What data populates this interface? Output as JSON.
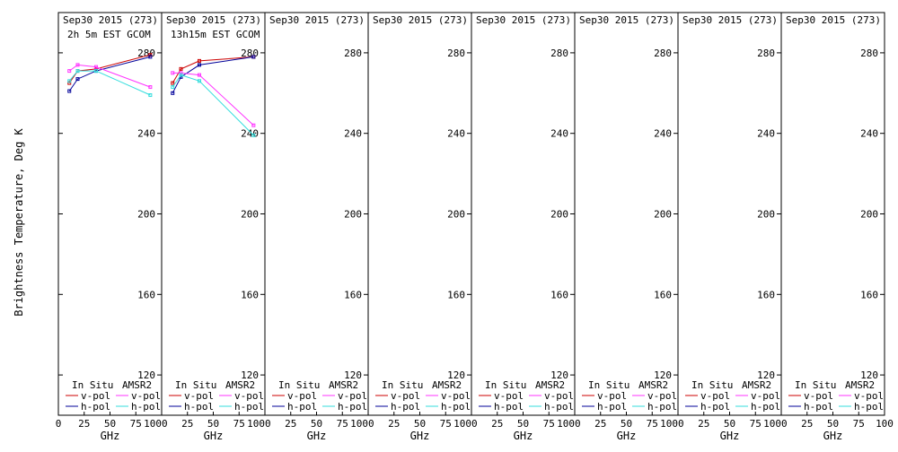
{
  "figure": {
    "ylabel": "Brightness Temperature, Deg K",
    "xlabel": "GHz"
  },
  "legend": {
    "insitu": "In Situ",
    "amsr2": "AMSR2",
    "vpol": "v-pol",
    "hpol": "h-pol"
  },
  "colors": {
    "insitu_v": "#cc0000",
    "insitu_h": "#000099",
    "amsr2_v": "#ff33ff",
    "amsr2_h": "#33dddd",
    "axis": "#000000"
  },
  "chart_data": [
    {
      "type": "line",
      "title_line1": "Sep30 2015 (273)",
      "title_line2": "2h 5m EST GCOM",
      "xlim": [
        0,
        100
      ],
      "ylim": [
        100,
        300
      ],
      "xticks": [
        0,
        25,
        50,
        75,
        100
      ],
      "yticks": [
        120,
        160,
        200,
        240,
        280
      ],
      "series": [
        {
          "key": "insitu_v",
          "x": [
            10.65,
            18.7,
            36.5,
            89
          ],
          "y": [
            265,
            271,
            272,
            279
          ]
        },
        {
          "key": "insitu_h",
          "x": [
            10.65,
            18.7,
            36.5,
            89
          ],
          "y": [
            261,
            267,
            271,
            278
          ]
        },
        {
          "key": "amsr2_v",
          "x": [
            10.65,
            18.7,
            36.5,
            89
          ],
          "y": [
            271,
            274,
            273,
            263
          ]
        },
        {
          "key": "amsr2_h",
          "x": [
            10.65,
            18.7,
            36.5,
            89
          ],
          "y": [
            266,
            271,
            271,
            259
          ]
        }
      ]
    },
    {
      "type": "line",
      "title_line1": "Sep30 2015 (273)",
      "title_line2": "13h15m EST GCOM",
      "xlim": [
        0,
        100
      ],
      "ylim": [
        100,
        300
      ],
      "xticks": [
        0,
        25,
        50,
        75,
        100
      ],
      "yticks": [
        120,
        160,
        200,
        240,
        280
      ],
      "series": [
        {
          "key": "insitu_v",
          "x": [
            10.65,
            18.7,
            36.5,
            89
          ],
          "y": [
            265,
            272,
            276,
            278
          ]
        },
        {
          "key": "insitu_h",
          "x": [
            10.65,
            18.7,
            36.5,
            89
          ],
          "y": [
            260,
            268,
            274,
            278
          ]
        },
        {
          "key": "amsr2_v",
          "x": [
            10.65,
            18.7,
            36.5,
            89
          ],
          "y": [
            270,
            270,
            269,
            244
          ]
        },
        {
          "key": "amsr2_h",
          "x": [
            10.65,
            18.7,
            36.5,
            89
          ],
          "y": [
            263,
            269,
            266,
            239
          ]
        }
      ]
    },
    {
      "type": "line",
      "title_line1": "Sep30 2015 (273)",
      "title_line2": "",
      "xlim": [
        0,
        100
      ],
      "ylim": [
        100,
        300
      ],
      "xticks": [
        0,
        25,
        50,
        75,
        100
      ],
      "yticks": [
        120,
        160,
        200,
        240,
        280
      ],
      "series": []
    },
    {
      "type": "line",
      "title_line1": "Sep30 2015 (273)",
      "title_line2": "",
      "xlim": [
        0,
        100
      ],
      "ylim": [
        100,
        300
      ],
      "xticks": [
        0,
        25,
        50,
        75,
        100
      ],
      "yticks": [
        120,
        160,
        200,
        240,
        280
      ],
      "series": []
    },
    {
      "type": "line",
      "title_line1": "Sep30 2015 (273)",
      "title_line2": "",
      "xlim": [
        0,
        100
      ],
      "ylim": [
        100,
        300
      ],
      "xticks": [
        0,
        25,
        50,
        75,
        100
      ],
      "yticks": [
        120,
        160,
        200,
        240,
        280
      ],
      "series": []
    },
    {
      "type": "line",
      "title_line1": "Sep30 2015 (273)",
      "title_line2": "",
      "xlim": [
        0,
        100
      ],
      "ylim": [
        100,
        300
      ],
      "xticks": [
        0,
        25,
        50,
        75,
        100
      ],
      "yticks": [
        120,
        160,
        200,
        240,
        280
      ],
      "series": []
    },
    {
      "type": "line",
      "title_line1": "Sep30 2015 (273)",
      "title_line2": "",
      "xlim": [
        0,
        100
      ],
      "ylim": [
        100,
        300
      ],
      "xticks": [
        0,
        25,
        50,
        75,
        100
      ],
      "yticks": [
        120,
        160,
        200,
        240,
        280
      ],
      "series": []
    },
    {
      "type": "line",
      "title_line1": "Sep30 2015 (273)",
      "title_line2": "",
      "xlim": [
        0,
        100
      ],
      "ylim": [
        100,
        300
      ],
      "xticks": [
        0,
        25,
        50,
        75,
        100
      ],
      "yticks": [
        120,
        160,
        200,
        240,
        280
      ],
      "series": []
    }
  ]
}
